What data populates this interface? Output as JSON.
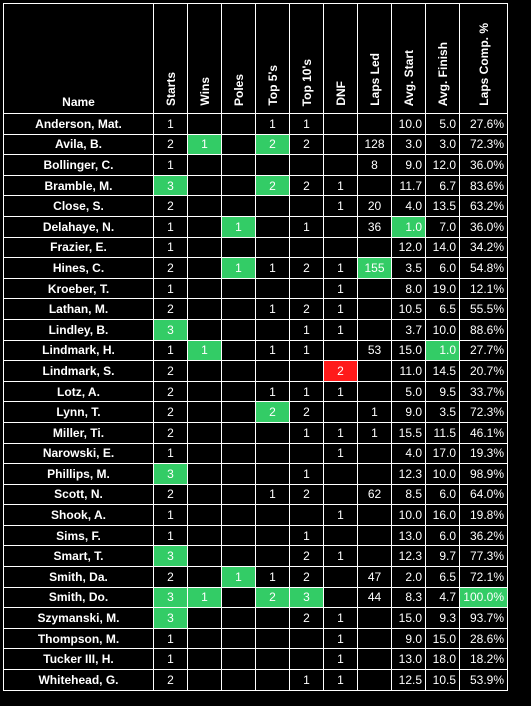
{
  "headers": [
    "Name",
    "Starts",
    "Wins",
    "Poles",
    "Top 5's",
    "Top 10's",
    "DNF",
    "Laps Led",
    "Avg. Start",
    "Avg. Finish",
    "Laps Comp. %"
  ],
  "colors": {
    "best": "#33cc66",
    "worst": "#ff1a1a",
    "background": "#000000",
    "text": "#ffffff"
  },
  "rows": [
    {
      "name": "Anderson, Mat.",
      "starts": "1",
      "wins": "",
      "poles": "",
      "top5": "1",
      "top10": "1",
      "dnf": "",
      "led": "",
      "avg_start": "10.0",
      "avg_finish": "5.0",
      "laps_pct": "27.6%",
      "hl": {}
    },
    {
      "name": "Avila, B.",
      "starts": "2",
      "wins": "1",
      "poles": "",
      "top5": "2",
      "top10": "2",
      "dnf": "",
      "led": "128",
      "avg_start": "3.0",
      "avg_finish": "3.0",
      "laps_pct": "72.3%",
      "hl": {
        "wins": "green",
        "top5": "green"
      }
    },
    {
      "name": "Bollinger, C.",
      "starts": "1",
      "wins": "",
      "poles": "",
      "top5": "",
      "top10": "",
      "dnf": "",
      "led": "8",
      "avg_start": "9.0",
      "avg_finish": "12.0",
      "laps_pct": "36.0%",
      "hl": {}
    },
    {
      "name": "Bramble, M.",
      "starts": "3",
      "wins": "",
      "poles": "",
      "top5": "2",
      "top10": "2",
      "dnf": "1",
      "led": "",
      "avg_start": "11.7",
      "avg_finish": "6.7",
      "laps_pct": "83.6%",
      "hl": {
        "starts": "green",
        "top5": "green"
      }
    },
    {
      "name": "Close, S.",
      "starts": "2",
      "wins": "",
      "poles": "",
      "top5": "",
      "top10": "",
      "dnf": "1",
      "led": "20",
      "avg_start": "4.0",
      "avg_finish": "13.5",
      "laps_pct": "63.2%",
      "hl": {}
    },
    {
      "name": "Delahaye, N.",
      "starts": "1",
      "wins": "",
      "poles": "1",
      "top5": "",
      "top10": "1",
      "dnf": "",
      "led": "36",
      "avg_start": "1.0",
      "avg_finish": "7.0",
      "laps_pct": "36.0%",
      "hl": {
        "poles": "green",
        "avg_start": "green"
      }
    },
    {
      "name": "Frazier, E.",
      "starts": "1",
      "wins": "",
      "poles": "",
      "top5": "",
      "top10": "",
      "dnf": "",
      "led": "",
      "avg_start": "12.0",
      "avg_finish": "14.0",
      "laps_pct": "34.2%",
      "hl": {}
    },
    {
      "name": "Hines, C.",
      "starts": "2",
      "wins": "",
      "poles": "1",
      "top5": "1",
      "top10": "2",
      "dnf": "1",
      "led": "155",
      "avg_start": "3.5",
      "avg_finish": "6.0",
      "laps_pct": "54.8%",
      "hl": {
        "poles": "green",
        "led": "green"
      }
    },
    {
      "name": "Kroeber, T.",
      "starts": "1",
      "wins": "",
      "poles": "",
      "top5": "",
      "top10": "",
      "dnf": "1",
      "led": "",
      "avg_start": "8.0",
      "avg_finish": "19.0",
      "laps_pct": "12.1%",
      "hl": {}
    },
    {
      "name": "Lathan, M.",
      "starts": "2",
      "wins": "",
      "poles": "",
      "top5": "1",
      "top10": "2",
      "dnf": "1",
      "led": "",
      "avg_start": "10.5",
      "avg_finish": "6.5",
      "laps_pct": "55.5%",
      "hl": {}
    },
    {
      "name": "Lindley, B.",
      "starts": "3",
      "wins": "",
      "poles": "",
      "top5": "",
      "top10": "1",
      "dnf": "1",
      "led": "",
      "avg_start": "3.7",
      "avg_finish": "10.0",
      "laps_pct": "88.6%",
      "hl": {
        "starts": "green"
      }
    },
    {
      "name": "Lindmark, H.",
      "starts": "1",
      "wins": "1",
      "poles": "",
      "top5": "1",
      "top10": "1",
      "dnf": "",
      "led": "53",
      "avg_start": "15.0",
      "avg_finish": "1.0",
      "laps_pct": "27.7%",
      "hl": {
        "wins": "green",
        "avg_finish": "green"
      }
    },
    {
      "name": "Lindmark, S.",
      "starts": "2",
      "wins": "",
      "poles": "",
      "top5": "",
      "top10": "",
      "dnf": "2",
      "led": "",
      "avg_start": "11.0",
      "avg_finish": "14.5",
      "laps_pct": "20.7%",
      "hl": {
        "dnf": "red"
      }
    },
    {
      "name": "Lotz, A.",
      "starts": "2",
      "wins": "",
      "poles": "",
      "top5": "1",
      "top10": "1",
      "dnf": "1",
      "led": "",
      "avg_start": "5.0",
      "avg_finish": "9.5",
      "laps_pct": "33.7%",
      "hl": {}
    },
    {
      "name": "Lynn, T.",
      "starts": "2",
      "wins": "",
      "poles": "",
      "top5": "2",
      "top10": "2",
      "dnf": "",
      "led": "1",
      "avg_start": "9.0",
      "avg_finish": "3.5",
      "laps_pct": "72.3%",
      "hl": {
        "top5": "green"
      }
    },
    {
      "name": "Miller, Ti.",
      "starts": "2",
      "wins": "",
      "poles": "",
      "top5": "",
      "top10": "1",
      "dnf": "1",
      "led": "1",
      "avg_start": "15.5",
      "avg_finish": "11.5",
      "laps_pct": "46.1%",
      "hl": {}
    },
    {
      "name": "Narowski, E.",
      "starts": "1",
      "wins": "",
      "poles": "",
      "top5": "",
      "top10": "",
      "dnf": "1",
      "led": "",
      "avg_start": "4.0",
      "avg_finish": "17.0",
      "laps_pct": "19.3%",
      "hl": {}
    },
    {
      "name": "Phillips, M.",
      "starts": "3",
      "wins": "",
      "poles": "",
      "top5": "",
      "top10": "1",
      "dnf": "",
      "led": "",
      "avg_start": "12.3",
      "avg_finish": "10.0",
      "laps_pct": "98.9%",
      "hl": {
        "starts": "green"
      }
    },
    {
      "name": "Scott, N.",
      "starts": "2",
      "wins": "",
      "poles": "",
      "top5": "1",
      "top10": "2",
      "dnf": "",
      "led": "62",
      "avg_start": "8.5",
      "avg_finish": "6.0",
      "laps_pct": "64.0%",
      "hl": {}
    },
    {
      "name": "Shook, A.",
      "starts": "1",
      "wins": "",
      "poles": "",
      "top5": "",
      "top10": "",
      "dnf": "1",
      "led": "",
      "avg_start": "10.0",
      "avg_finish": "16.0",
      "laps_pct": "19.8%",
      "hl": {}
    },
    {
      "name": "Sims, F.",
      "starts": "1",
      "wins": "",
      "poles": "",
      "top5": "",
      "top10": "1",
      "dnf": "",
      "led": "",
      "avg_start": "13.0",
      "avg_finish": "6.0",
      "laps_pct": "36.2%",
      "hl": {}
    },
    {
      "name": "Smart, T.",
      "starts": "3",
      "wins": "",
      "poles": "",
      "top5": "",
      "top10": "2",
      "dnf": "1",
      "led": "",
      "avg_start": "12.3",
      "avg_finish": "9.7",
      "laps_pct": "77.3%",
      "hl": {
        "starts": "green"
      }
    },
    {
      "name": "Smith, Da.",
      "starts": "2",
      "wins": "",
      "poles": "1",
      "top5": "1",
      "top10": "2",
      "dnf": "",
      "led": "47",
      "avg_start": "2.0",
      "avg_finish": "6.5",
      "laps_pct": "72.1%",
      "hl": {
        "poles": "green"
      }
    },
    {
      "name": "Smith, Do.",
      "starts": "3",
      "wins": "1",
      "poles": "",
      "top5": "2",
      "top10": "3",
      "dnf": "",
      "led": "44",
      "avg_start": "8.3",
      "avg_finish": "4.7",
      "laps_pct": "100.0%",
      "hl": {
        "starts": "green",
        "wins": "green",
        "top5": "green",
        "top10": "green",
        "laps_pct": "green"
      }
    },
    {
      "name": "Szymanski, M.",
      "starts": "3",
      "wins": "",
      "poles": "",
      "top5": "",
      "top10": "2",
      "dnf": "1",
      "led": "",
      "avg_start": "15.0",
      "avg_finish": "9.3",
      "laps_pct": "93.7%",
      "hl": {
        "starts": "green"
      }
    },
    {
      "name": "Thompson, M.",
      "starts": "1",
      "wins": "",
      "poles": "",
      "top5": "",
      "top10": "",
      "dnf": "1",
      "led": "",
      "avg_start": "9.0",
      "avg_finish": "15.0",
      "laps_pct": "28.6%",
      "hl": {}
    },
    {
      "name": "Tucker III, H.",
      "starts": "1",
      "wins": "",
      "poles": "",
      "top5": "",
      "top10": "",
      "dnf": "1",
      "led": "",
      "avg_start": "13.0",
      "avg_finish": "18.0",
      "laps_pct": "18.2%",
      "hl": {}
    },
    {
      "name": "Whitehead, G.",
      "starts": "2",
      "wins": "",
      "poles": "",
      "top5": "",
      "top10": "1",
      "dnf": "1",
      "led": "",
      "avg_start": "12.5",
      "avg_finish": "10.5",
      "laps_pct": "53.9%",
      "hl": {}
    }
  ]
}
